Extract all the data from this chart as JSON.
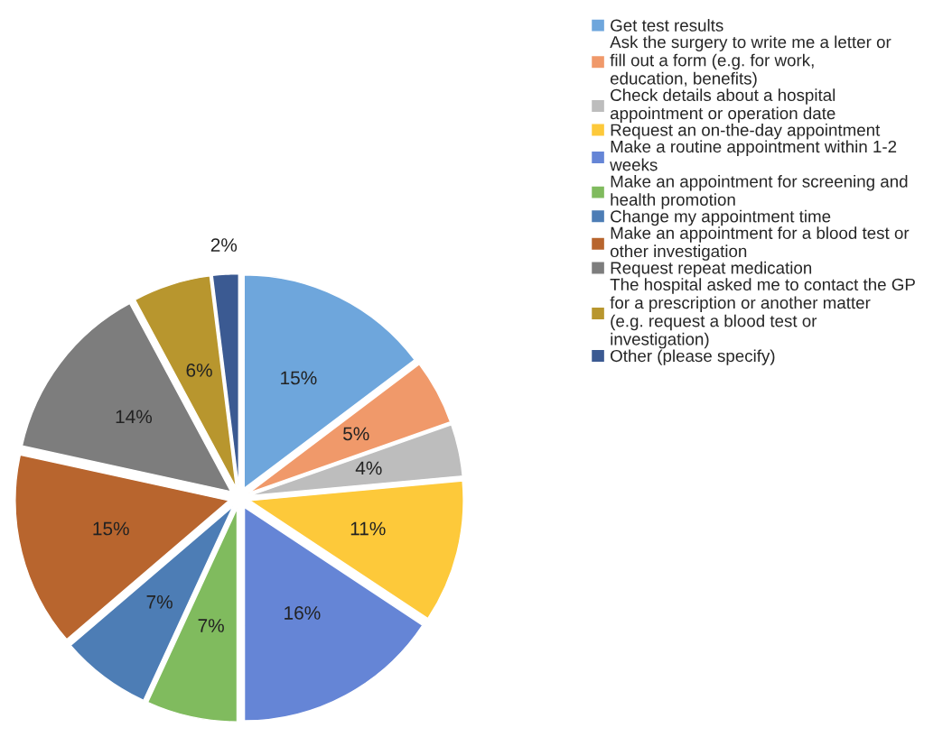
{
  "chart_data": {
    "type": "pie",
    "categories": [
      "Get test results",
      "Ask the surgery to write me a letter or fill out a form (e.g. for work, education, benefits)",
      "Check details about a hospital appointment or operation date",
      "Request an on-the-day appointment",
      "Make a routine appointment within 1-2 weeks",
      "Make an appointment for screening and health promotion",
      "Change my appointment time",
      "Make an appointment for a blood test or other investigation",
      "Request repeat medication",
      "The hospital asked me to contact the GP for a prescription or another matter (e.g. request a blood test or investigation)",
      "Other (please specify)"
    ],
    "values": [
      15,
      5,
      4,
      11,
      16,
      7,
      7,
      15,
      14,
      6,
      2
    ],
    "value_labels": [
      "15%",
      "5%",
      "4%",
      "11%",
      "16%",
      "7%",
      "7%",
      "15%",
      "14%",
      "6%",
      "2%"
    ],
    "colors": [
      "#6ea6dc",
      "#f0996a",
      "#bdbdbd",
      "#fdc93a",
      "#6585d6",
      "#80bb5e",
      "#4d7db5",
      "#b8652e",
      "#7d7d7d",
      "#b8962e",
      "#3b5a92"
    ],
    "legend": "top right"
  }
}
